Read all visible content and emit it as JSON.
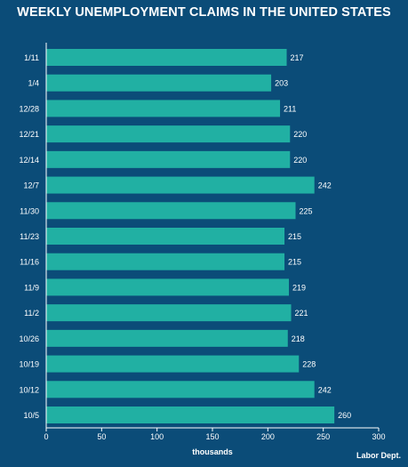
{
  "header": {
    "title": "WEEKLY UNEMPLOYMENT CLAIMS IN THE UNITED STATES"
  },
  "footer": {
    "source": "Labor Dept."
  },
  "colors": {
    "background": "#0b4c78",
    "bar": "#21b0a3",
    "axis": "#ffffff",
    "text": "#ffffff"
  },
  "chart_data": {
    "type": "bar",
    "orientation": "horizontal",
    "title": "WEEKLY UNEMPLOYMENT CLAIMS IN THE UNITED STATES",
    "xlabel": "thousands",
    "ylabel": "",
    "categories": [
      "1/11",
      "1/4",
      "12/28",
      "12/21",
      "12/14",
      "12/7",
      "11/30",
      "11/23",
      "11/16",
      "11/9",
      "11/2",
      "10/26",
      "10/19",
      "10/12",
      "10/5"
    ],
    "values": [
      217,
      203,
      211,
      220,
      220,
      242,
      225,
      215,
      215,
      219,
      221,
      218,
      228,
      242,
      260
    ],
    "xlim": [
      0,
      300
    ],
    "xticks": [
      0,
      50,
      100,
      150,
      200,
      250,
      300
    ],
    "data_labels": true,
    "grid": false
  }
}
